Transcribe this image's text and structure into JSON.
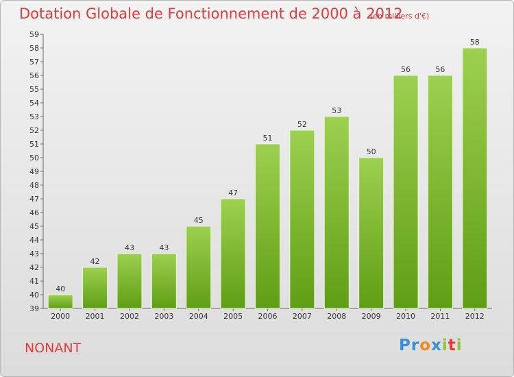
{
  "header": {
    "title": "Dotation Globale de Fonctionnement de 2000 à 2012",
    "unit": "(en milliers d'€)"
  },
  "footer": {
    "commune": "NONANT",
    "logo_letters": [
      {
        "ch": "P",
        "color": "#3a8fd8"
      },
      {
        "ch": "r",
        "color": "#3a8fd8"
      },
      {
        "ch": "o",
        "color": "#f08a1c"
      },
      {
        "ch": "x",
        "color": "#3a8fd8"
      },
      {
        "ch": "i",
        "color": "#8cc63f"
      },
      {
        "ch": "t",
        "color": "#e23a3a"
      },
      {
        "ch": "i",
        "color": "#8cc63f"
      }
    ]
  },
  "chart_data": {
    "type": "bar",
    "title": "Dotation Globale de Fonctionnement de 2000 à 2012",
    "subtitle": "(en milliers d'€)",
    "categories": [
      "2000",
      "2001",
      "2002",
      "2003",
      "2004",
      "2005",
      "2006",
      "2007",
      "2008",
      "2009",
      "2010",
      "2011",
      "2012"
    ],
    "values": [
      40,
      42,
      43,
      43,
      45,
      47,
      51,
      52,
      53,
      50,
      56,
      56,
      58
    ],
    "ylim": [
      39,
      59
    ],
    "yticks": [
      39,
      40,
      41,
      42,
      43,
      44,
      45,
      46,
      47,
      48,
      49,
      50,
      51,
      52,
      53,
      54,
      55,
      56,
      57,
      58,
      59
    ],
    "grid": false,
    "bar_color_top": "#9dd050",
    "bar_color_bottom": "#5f9e14"
  }
}
